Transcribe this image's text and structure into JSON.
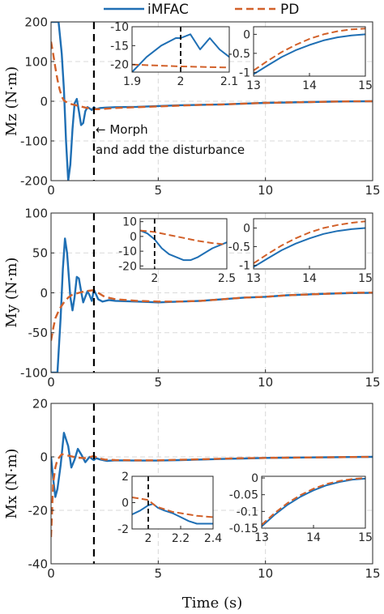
{
  "colors": {
    "imfac": "#1f6fb4",
    "pd": "#d2612a",
    "grid": "#d9d9d9",
    "morph_line": "#000000"
  },
  "legend": {
    "entries": [
      "iMFAC",
      "PD"
    ],
    "placement": "top-center"
  },
  "chart_data": [
    {
      "id": "mz",
      "type": "line",
      "ylabel": "Mz (N·m)",
      "xlabel": "",
      "xlim": [
        0,
        15
      ],
      "ylim": [
        -200,
        200
      ],
      "xticks": [
        0,
        5,
        10,
        15
      ],
      "yticks": [
        -200,
        -100,
        0,
        100,
        200
      ],
      "grid": true,
      "morph_time": 2,
      "annotation": [
        "← Morph",
        "and add the disturbance"
      ],
      "series": [
        {
          "name": "iMFAC",
          "x": [
            0,
            0.1,
            0.2,
            0.35,
            0.5,
            0.6,
            0.7,
            0.8,
            0.9,
            1.0,
            1.1,
            1.2,
            1.3,
            1.4,
            1.5,
            1.6,
            1.7,
            1.8,
            1.9,
            2.0,
            2.1,
            2.3,
            2.6,
            3,
            4,
            5,
            6,
            7,
            8,
            9,
            10,
            11,
            12,
            13,
            14,
            15
          ],
          "y": [
            200,
            200,
            200,
            200,
            120,
            30,
            -100,
            -200,
            -160,
            -70,
            -5,
            6,
            -25,
            -60,
            -55,
            -25,
            -15,
            -18,
            -22,
            -15,
            -20,
            -17,
            -16,
            -15,
            -14,
            -12,
            -10,
            -9,
            -8,
            -6,
            -4,
            -3,
            -2,
            -1,
            -0.5,
            0
          ]
        },
        {
          "name": "PD",
          "x": [
            0,
            0.1,
            0.2,
            0.3,
            0.4,
            0.5,
            0.6,
            0.8,
            1.0,
            1.3,
            1.6,
            1.9,
            2.0,
            2.2,
            2.5,
            3,
            4,
            5,
            6,
            7,
            8,
            9,
            10,
            11,
            12,
            13,
            14,
            15
          ],
          "y": [
            150,
            120,
            85,
            55,
            30,
            12,
            2,
            -5,
            -8,
            -12,
            -16,
            -19,
            -20,
            -20,
            -19,
            -17,
            -15,
            -13,
            -11,
            -9,
            -8,
            -6,
            -4,
            -3,
            -2,
            -1,
            -0.2,
            0
          ]
        }
      ],
      "insets": [
        {
          "xlim": [
            1.9,
            2.1
          ],
          "ylim": [
            -22,
            -10
          ],
          "xticks": [
            1.9,
            2,
            2.1
          ],
          "xtick_labels": [
            "1.9",
            "2",
            "2.1"
          ],
          "yticks": [
            -20,
            -15,
            -10
          ],
          "ytick_labels": [
            "-20",
            "-15",
            "-10"
          ],
          "morph_time": 2,
          "series": [
            {
              "name": "iMFAC",
              "x": [
                1.9,
                1.93,
                1.96,
                1.99,
                2.0,
                2.02,
                2.04,
                2.06,
                2.08,
                2.1
              ],
              "y": [
                -22,
                -18,
                -15,
                -13,
                -13,
                -12,
                -16,
                -13,
                -16,
                -18
              ]
            },
            {
              "name": "PD",
              "x": [
                1.9,
                2.0,
                2.1
              ],
              "y": [
                -20,
                -20.5,
                -20.8
              ]
            }
          ]
        },
        {
          "xlim": [
            13,
            15
          ],
          "ylim": [
            -1.1,
            0.2
          ],
          "xticks": [
            13,
            14,
            15
          ],
          "xtick_labels": [
            "13",
            "14",
            "15"
          ],
          "yticks": [
            -1,
            -0.5,
            0
          ],
          "ytick_labels": [
            "-1",
            "-0.5",
            "0"
          ],
          "series": [
            {
              "name": "iMFAC",
              "x": [
                13,
                13.25,
                13.5,
                13.75,
                14,
                14.25,
                14.5,
                14.75,
                15
              ],
              "y": [
                -1.05,
                -0.82,
                -0.6,
                -0.42,
                -0.28,
                -0.16,
                -0.08,
                -0.03,
                0
              ]
            },
            {
              "name": "PD",
              "x": [
                13,
                13.25,
                13.5,
                13.75,
                14,
                14.25,
                14.5,
                14.75,
                15
              ],
              "y": [
                -0.95,
                -0.7,
                -0.47,
                -0.28,
                -0.12,
                0,
                0.08,
                0.13,
                0.15
              ]
            }
          ]
        }
      ]
    },
    {
      "id": "my",
      "type": "line",
      "ylabel": "My (N·m)",
      "xlabel": "",
      "xlim": [
        0,
        15
      ],
      "ylim": [
        -100,
        100
      ],
      "xticks": [
        0,
        5,
        10,
        15
      ],
      "yticks": [
        -100,
        -50,
        0,
        50,
        100
      ],
      "grid": true,
      "morph_time": 2,
      "series": [
        {
          "name": "iMFAC",
          "x": [
            0,
            0.15,
            0.3,
            0.45,
            0.55,
            0.65,
            0.75,
            0.9,
            1.0,
            1.1,
            1.2,
            1.3,
            1.4,
            1.5,
            1.6,
            1.7,
            1.8,
            1.9,
            2.0,
            2.2,
            2.4,
            2.7,
            3,
            4,
            5,
            6,
            7,
            8,
            9,
            10,
            11,
            12,
            13,
            14,
            15
          ],
          "y": [
            -100,
            -100,
            -100,
            -30,
            30,
            68,
            50,
            -5,
            -22,
            -5,
            20,
            18,
            2,
            -12,
            -5,
            2,
            -3,
            -10,
            4,
            -8,
            -11,
            -9,
            -10,
            -11,
            -12,
            -11,
            -10,
            -8,
            -6,
            -5,
            -3,
            -2,
            -1,
            -0.3,
            0
          ]
        },
        {
          "name": "PD",
          "x": [
            0,
            0.1,
            0.2,
            0.4,
            0.6,
            0.8,
            1.0,
            1.3,
            1.6,
            1.9,
            2.0,
            2.2,
            2.5,
            3,
            4,
            5,
            6,
            7,
            8,
            9,
            10,
            11,
            12,
            13,
            14,
            15
          ],
          "y": [
            -60,
            -45,
            -32,
            -20,
            -12,
            -6,
            -2,
            0,
            2,
            3,
            3,
            0,
            -5,
            -8,
            -10,
            -11,
            -11,
            -10,
            -8,
            -6,
            -5,
            -3,
            -2,
            -1,
            0.1,
            0.2
          ]
        }
      ],
      "insets": [
        {
          "xlim": [
            1.9,
            2.5
          ],
          "ylim": [
            -22,
            12
          ],
          "xticks": [
            2,
            2.5
          ],
          "xtick_labels": [
            "2",
            "2.5"
          ],
          "yticks": [
            -20,
            -10,
            0,
            10
          ],
          "ytick_labels": [
            "-20",
            "-10",
            "0",
            "10"
          ],
          "morph_time": 2,
          "series": [
            {
              "name": "iMFAC",
              "x": [
                1.9,
                1.95,
                2.0,
                2.05,
                2.1,
                2.15,
                2.2,
                2.25,
                2.3,
                2.35,
                2.4,
                2.45,
                2.5
              ],
              "y": [
                4,
                2,
                -2,
                -8,
                -12,
                -14,
                -16,
                -16,
                -14,
                -11,
                -8,
                -6,
                -4
              ]
            },
            {
              "name": "PD",
              "x": [
                1.9,
                2.0,
                2.1,
                2.2,
                2.3,
                2.4,
                2.5
              ],
              "y": [
                4,
                3,
                1,
                -1,
                -3,
                -4.5,
                -5.5
              ]
            }
          ]
        },
        {
          "xlim": [
            13,
            15
          ],
          "ylim": [
            -1.1,
            0.25
          ],
          "xticks": [
            13,
            14,
            15
          ],
          "xtick_labels": [
            "13",
            "14",
            "15"
          ],
          "yticks": [
            -1,
            -0.5,
            0
          ],
          "ytick_labels": [
            "-1",
            "-0.5",
            "0"
          ],
          "series": [
            {
              "name": "iMFAC",
              "x": [
                13,
                13.25,
                13.5,
                13.75,
                14,
                14.25,
                14.5,
                14.75,
                15
              ],
              "y": [
                -1.05,
                -0.82,
                -0.6,
                -0.42,
                -0.28,
                -0.16,
                -0.08,
                -0.03,
                0
              ]
            },
            {
              "name": "PD",
              "x": [
                13,
                13.25,
                13.5,
                13.75,
                14,
                14.25,
                14.5,
                14.75,
                15
              ],
              "y": [
                -0.95,
                -0.7,
                -0.47,
                -0.28,
                -0.12,
                0,
                0.08,
                0.14,
                0.18
              ]
            }
          ]
        }
      ]
    },
    {
      "id": "mx",
      "type": "line",
      "ylabel": "Mx (N·m)",
      "xlabel": "Time (s)",
      "xlim": [
        0,
        15
      ],
      "ylim": [
        -40,
        20
      ],
      "xticks": [
        0,
        5,
        10,
        15
      ],
      "yticks": [
        -40,
        -20,
        0,
        20
      ],
      "grid": true,
      "morph_time": 2,
      "series": [
        {
          "name": "iMFAC",
          "x": [
            0,
            0.1,
            0.2,
            0.3,
            0.45,
            0.6,
            0.8,
            0.95,
            1.1,
            1.25,
            1.4,
            1.6,
            1.8,
            1.95,
            2.0,
            2.1,
            2.3,
            2.6,
            3,
            4,
            5,
            6,
            7,
            8,
            9,
            10,
            11,
            12,
            13,
            14,
            15
          ],
          "y": [
            0,
            -8,
            -15,
            -12,
            -3,
            9,
            4,
            -4,
            -1,
            3,
            1,
            -2,
            0,
            -1,
            -1.2,
            -0.5,
            -1,
            -1.5,
            -1.3,
            -1.4,
            -1.4,
            -1.2,
            -1,
            -0.8,
            -0.6,
            -0.4,
            -0.3,
            -0.2,
            -0.15,
            -0.05,
            0
          ]
        },
        {
          "name": "PD",
          "x": [
            0,
            0.05,
            0.1,
            0.2,
            0.3,
            0.5,
            0.8,
            1.2,
            1.6,
            2.0,
            2.2,
            2.5,
            3,
            4,
            5,
            6,
            7,
            8,
            9,
            10,
            11,
            12,
            13,
            14,
            15
          ],
          "y": [
            -30,
            -20,
            -10,
            -4,
            -1,
            1,
            0.5,
            -0.3,
            -0.5,
            0.3,
            -0.5,
            -1,
            -1.2,
            -1.3,
            -1.3,
            -1.1,
            -0.9,
            -0.7,
            -0.5,
            -0.4,
            -0.3,
            -0.2,
            -0.15,
            -0.05,
            0
          ]
        }
      ],
      "insets": [
        {
          "xlim": [
            1.9,
            2.4
          ],
          "ylim": [
            -2,
            2
          ],
          "xticks": [
            2,
            2.2,
            2.4
          ],
          "xtick_labels": [
            "2",
            "2.2",
            "2.4"
          ],
          "yticks": [
            -2,
            0,
            2
          ],
          "ytick_labels": [
            "-2",
            "0",
            "2"
          ],
          "morph_time": 2,
          "series": [
            {
              "name": "iMFAC",
              "x": [
                1.9,
                1.95,
                2.0,
                2.03,
                2.06,
                2.1,
                2.15,
                2.2,
                2.25,
                2.3,
                2.35,
                2.4
              ],
              "y": [
                -0.9,
                -0.6,
                -0.2,
                -0.1,
                -0.4,
                -0.6,
                -0.8,
                -1.1,
                -1.4,
                -1.6,
                -1.6,
                -1.6
              ]
            },
            {
              "name": "PD",
              "x": [
                1.9,
                1.95,
                2.0,
                2.05,
                2.1,
                2.15,
                2.2,
                2.25,
                2.3,
                2.35,
                2.4
              ],
              "y": [
                0.4,
                0.3,
                0.2,
                -0.3,
                -0.5,
                -0.7,
                -0.8,
                -0.9,
                -1.0,
                -1.05,
                -1.1
              ]
            }
          ]
        },
        {
          "xlim": [
            13,
            15
          ],
          "ylim": [
            -0.15,
            0.005
          ],
          "xticks": [
            13,
            14,
            15
          ],
          "xtick_labels": [
            "13",
            "14",
            "15"
          ],
          "yticks": [
            -0.15,
            -0.1,
            -0.05,
            0
          ],
          "ytick_labels": [
            "-0.15",
            "-0.1",
            "-0.05",
            "0"
          ],
          "series": [
            {
              "name": "iMFAC",
              "x": [
                13,
                13.25,
                13.5,
                13.75,
                14,
                14.25,
                14.5,
                14.75,
                15
              ],
              "y": [
                -0.145,
                -0.11,
                -0.08,
                -0.056,
                -0.037,
                -0.022,
                -0.012,
                -0.005,
                -0.002
              ]
            },
            {
              "name": "PD",
              "x": [
                13,
                13.25,
                13.5,
                13.75,
                14,
                14.25,
                14.5,
                14.75,
                15
              ],
              "y": [
                -0.14,
                -0.105,
                -0.075,
                -0.051,
                -0.032,
                -0.018,
                -0.009,
                -0.003,
                0
              ]
            }
          ]
        }
      ]
    }
  ]
}
